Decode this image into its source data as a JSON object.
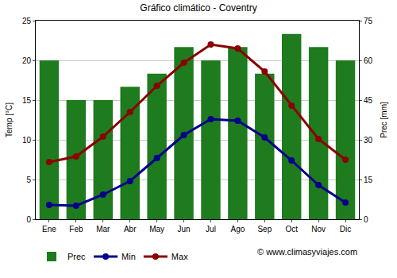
{
  "chart_data": {
    "type": "combo",
    "title": "Gráfico climático - Coventry",
    "categories": [
      "Ene",
      "Feb",
      "Mar",
      "Abr",
      "May",
      "Jun",
      "Jul",
      "Ago",
      "Sep",
      "Oct",
      "Nov",
      "Dic"
    ],
    "series": [
      {
        "name": "Prec",
        "type": "bar",
        "axis": "y2",
        "color": "#1e7b1e",
        "values": [
          60,
          45,
          45,
          50,
          55,
          65,
          60,
          65,
          55,
          70,
          65,
          60
        ]
      },
      {
        "name": "Min",
        "type": "line",
        "color": "#00008b",
        "marker": "circle",
        "values": [
          1.8,
          1.7,
          3.1,
          4.8,
          7.7,
          10.6,
          12.6,
          12.4,
          10.3,
          7.4,
          4.3,
          2.1
        ]
      },
      {
        "name": "Max",
        "type": "line",
        "color": "#8b0000",
        "marker": "circle",
        "values": [
          7.2,
          7.9,
          10.4,
          13.5,
          16.8,
          19.7,
          22.0,
          21.5,
          18.6,
          14.3,
          10.1,
          7.5
        ]
      }
    ],
    "ylabel": "Temp [°C]",
    "y2label": "Prec [mm]",
    "ylim": [
      0,
      25
    ],
    "yticks": [
      0,
      5,
      10,
      15,
      20,
      25
    ],
    "y2lim": [
      0,
      75
    ],
    "y2ticks": [
      0,
      15,
      30,
      45,
      60,
      75
    ],
    "grid": true,
    "legend": "bottom",
    "annotations": [
      {
        "text": "© www.climasyviajes.com"
      }
    ]
  }
}
